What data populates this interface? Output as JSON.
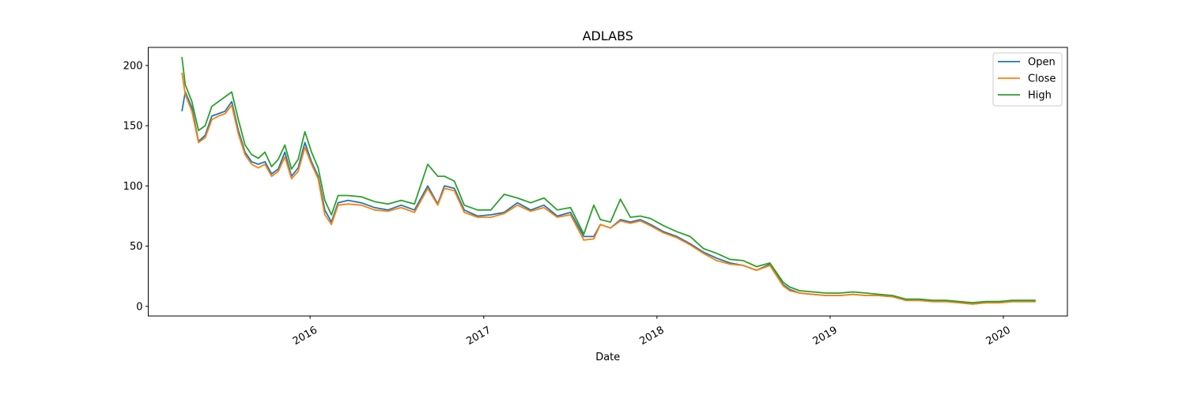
{
  "chart_data": {
    "type": "line",
    "title": "ADLABS",
    "xlabel": "Date",
    "ylabel": "",
    "ylim": [
      -8,
      215
    ],
    "xlim": [
      "2015-01-25",
      "2020-05-15"
    ],
    "yticks": [
      0,
      50,
      100,
      150,
      200
    ],
    "xticks": [
      {
        "date": "2016-01-01",
        "label": "2016"
      },
      {
        "date": "2017-01-01",
        "label": "2017"
      },
      {
        "date": "2018-01-01",
        "label": "2018"
      },
      {
        "date": "2019-01-01",
        "label": "2019"
      },
      {
        "date": "2020-01-01",
        "label": "2020"
      }
    ],
    "legend": {
      "position": "top-right"
    },
    "x": [
      "2015-04-06",
      "2015-04-13",
      "2015-04-27",
      "2015-05-11",
      "2015-05-25",
      "2015-06-08",
      "2015-06-22",
      "2015-07-06",
      "2015-07-20",
      "2015-08-03",
      "2015-08-17",
      "2015-08-31",
      "2015-09-14",
      "2015-09-28",
      "2015-10-12",
      "2015-10-26",
      "2015-11-09",
      "2015-11-23",
      "2015-12-07",
      "2015-12-21",
      "2016-01-04",
      "2016-01-18",
      "2016-02-01",
      "2016-02-15",
      "2016-02-29",
      "2016-03-21",
      "2016-04-18",
      "2016-05-16",
      "2016-06-13",
      "2016-07-11",
      "2016-08-08",
      "2016-09-05",
      "2016-09-26",
      "2016-10-10",
      "2016-10-31",
      "2016-11-21",
      "2016-12-19",
      "2017-01-16",
      "2017-02-13",
      "2017-03-13",
      "2017-04-10",
      "2017-05-08",
      "2017-06-05",
      "2017-07-03",
      "2017-07-31",
      "2017-08-21",
      "2017-09-04",
      "2017-09-25",
      "2017-10-16",
      "2017-11-06",
      "2017-11-27",
      "2017-12-18",
      "2018-01-15",
      "2018-02-12",
      "2018-03-12",
      "2018-04-09",
      "2018-05-07",
      "2018-06-04",
      "2018-07-02",
      "2018-07-30",
      "2018-08-27",
      "2018-09-24",
      "2018-10-08",
      "2018-10-29",
      "2018-11-26",
      "2018-12-24",
      "2019-01-21",
      "2019-02-18",
      "2019-03-18",
      "2019-04-15",
      "2019-05-13",
      "2019-06-10",
      "2019-07-08",
      "2019-08-05",
      "2019-09-02",
      "2019-09-30",
      "2019-10-28",
      "2019-11-25",
      "2019-12-23",
      "2020-01-20",
      "2020-02-17",
      "2020-03-09"
    ],
    "series": [
      {
        "name": "Open",
        "color": "#1f77b4",
        "values": [
          162,
          178,
          165,
          137,
          142,
          158,
          160,
          162,
          170,
          146,
          128,
          120,
          118,
          120,
          110,
          114,
          128,
          108,
          115,
          136,
          120,
          108,
          80,
          70,
          86,
          88,
          86,
          82,
          80,
          84,
          80,
          100,
          85,
          100,
          98,
          80,
          75,
          76,
          78,
          86,
          80,
          84,
          75,
          78,
          58,
          58,
          68,
          65,
          72,
          70,
          72,
          68,
          62,
          58,
          52,
          45,
          40,
          36,
          34,
          30,
          35,
          18,
          14,
          11,
          10,
          9,
          9,
          10,
          9,
          9,
          8,
          5,
          5,
          4,
          4,
          3,
          2,
          3,
          3,
          4,
          4,
          4
        ]
      },
      {
        "name": "Close",
        "color": "#ff7f0e",
        "values": [
          194,
          176,
          162,
          136,
          140,
          155,
          158,
          160,
          167,
          143,
          126,
          118,
          115,
          118,
          108,
          112,
          124,
          106,
          112,
          132,
          118,
          106,
          76,
          68,
          84,
          85,
          84,
          80,
          79,
          82,
          78,
          98,
          84,
          98,
          96,
          78,
          74,
          74,
          77,
          84,
          79,
          82,
          74,
          76,
          55,
          56,
          68,
          65,
          71,
          69,
          71,
          67,
          61,
          57,
          51,
          44,
          38,
          35,
          34,
          30,
          34,
          17,
          13,
          11,
          10,
          9,
          9,
          10,
          9,
          9,
          8,
          5,
          5,
          4,
          4,
          3,
          2,
          3,
          3,
          4,
          4,
          4
        ]
      },
      {
        "name": "High",
        "color": "#2ca02c",
        "values": [
          207,
          184,
          170,
          146,
          150,
          166,
          170,
          174,
          178,
          155,
          134,
          126,
          123,
          128,
          116,
          122,
          134,
          114,
          122,
          145,
          128,
          115,
          88,
          76,
          92,
          92,
          91,
          87,
          85,
          88,
          85,
          118,
          108,
          108,
          104,
          84,
          80,
          80,
          93,
          90,
          86,
          90,
          80,
          82,
          60,
          84,
          72,
          70,
          89,
          74,
          75,
          73,
          67,
          62,
          58,
          48,
          44,
          39,
          38,
          33,
          36,
          20,
          16,
          13,
          12,
          11,
          11,
          12,
          11,
          10,
          9,
          6,
          6,
          5,
          5,
          4,
          3,
          4,
          4,
          5,
          5,
          5
        ]
      }
    ]
  }
}
